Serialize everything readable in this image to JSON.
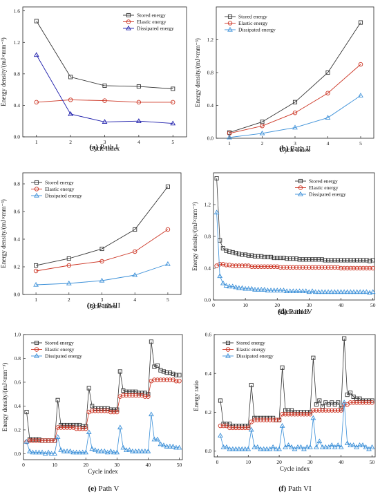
{
  "figure": {
    "colors": {
      "stored": "#333333",
      "elastic": "#cc3322",
      "dissipated_blue_line": "#1a1aaa",
      "dissipated": "#3a8fd8"
    },
    "legend_labels": [
      "Stored energy",
      "Elastic energy",
      "Dissipated energy"
    ]
  },
  "chart_data": [
    {
      "id": "a",
      "type": "line",
      "caption_letter": "(a)",
      "caption_text": " Path I",
      "xlabel": "Cycle index",
      "ylabel": "Energy density/(mJ×mm⁻³)",
      "xlim": [
        0.6,
        5.4
      ],
      "ylim": [
        0,
        1.65
      ],
      "xticks": [
        "1",
        "2",
        "3",
        "4",
        "5"
      ],
      "yticks": [
        "0.0",
        "0.4",
        "0.8",
        "1.2",
        "1.6"
      ],
      "legend_position": "top-right",
      "x": [
        1,
        2,
        3,
        4,
        5
      ],
      "series": [
        {
          "name": "Stored energy",
          "values": [
            1.47,
            0.76,
            0.65,
            0.64,
            0.61
          ]
        },
        {
          "name": "Elastic energy",
          "values": [
            0.44,
            0.47,
            0.46,
            0.44,
            0.44
          ]
        },
        {
          "name": "Dissipated energy",
          "values": [
            1.04,
            0.29,
            0.19,
            0.2,
            0.17
          ]
        }
      ]
    },
    {
      "id": "b",
      "type": "line",
      "caption_letter": "(b)",
      "caption_text": " Path II",
      "xlabel": "Cycle index",
      "ylabel": "Energy density/(mJ×mm⁻³)",
      "xlim": [
        0.6,
        5.4
      ],
      "ylim": [
        0,
        1.6
      ],
      "xticks": [
        "1",
        "2",
        "3",
        "4",
        "5"
      ],
      "yticks": [
        "0.0",
        "0.4",
        "0.8",
        "1.2"
      ],
      "legend_position": "top-left",
      "x": [
        1,
        2,
        3,
        4,
        5
      ],
      "series": [
        {
          "name": "Stored energy",
          "values": [
            0.07,
            0.2,
            0.44,
            0.8,
            1.41
          ]
        },
        {
          "name": "Elastic energy",
          "values": [
            0.06,
            0.15,
            0.31,
            0.55,
            0.9
          ]
        },
        {
          "name": "Dissipated energy",
          "values": [
            0.01,
            0.06,
            0.13,
            0.25,
            0.52
          ]
        }
      ]
    },
    {
      "id": "c",
      "type": "line",
      "caption_letter": "(c)",
      "caption_text": " Path III",
      "xlabel": "Cycle index",
      "ylabel": "Energy density/(mJ×mm⁻³)",
      "xlim": [
        0.6,
        5.4
      ],
      "ylim": [
        0,
        0.88
      ],
      "xticks": [
        "1",
        "2",
        "3",
        "4",
        "5"
      ],
      "yticks": [
        "0.0",
        "0.2",
        "0.4",
        "0.6",
        "0.8"
      ],
      "legend_position": "top-left",
      "x": [
        1,
        2,
        3,
        4,
        5
      ],
      "series": [
        {
          "name": "Stored energy",
          "values": [
            0.21,
            0.26,
            0.33,
            0.47,
            0.78
          ]
        },
        {
          "name": "Elastic energy",
          "values": [
            0.17,
            0.21,
            0.24,
            0.31,
            0.47
          ]
        },
        {
          "name": "Dissipated energy",
          "values": [
            0.07,
            0.08,
            0.1,
            0.14,
            0.22
          ]
        }
      ]
    },
    {
      "id": "d",
      "type": "line",
      "caption_letter": "(d)",
      "caption_text": " Path IV",
      "xlabel": "Cycle index",
      "ylabel": "Energy density/(mJ×mm⁻³)",
      "xlim": [
        0,
        50.5
      ],
      "ylim": [
        0,
        1.6
      ],
      "xticks": [
        "0",
        "10",
        "20",
        "30",
        "40",
        "50"
      ],
      "yticks": [
        "0.0",
        "0.4",
        "0.8",
        "1.2"
      ],
      "legend_position": "top-right",
      "x": [
        1,
        2,
        3,
        4,
        5,
        6,
        7,
        8,
        9,
        10,
        11,
        12,
        13,
        14,
        15,
        16,
        17,
        18,
        19,
        20,
        21,
        22,
        23,
        24,
        25,
        26,
        27,
        28,
        29,
        30,
        31,
        32,
        33,
        34,
        35,
        36,
        37,
        38,
        39,
        40,
        41,
        42,
        43,
        44,
        45,
        46,
        47,
        48,
        49,
        50
      ],
      "series": [
        {
          "name": "Stored energy",
          "values": [
            1.53,
            0.75,
            0.65,
            0.62,
            0.61,
            0.6,
            0.59,
            0.58,
            0.57,
            0.57,
            0.56,
            0.56,
            0.55,
            0.55,
            0.55,
            0.54,
            0.54,
            0.54,
            0.53,
            0.53,
            0.53,
            0.53,
            0.52,
            0.52,
            0.52,
            0.52,
            0.51,
            0.51,
            0.51,
            0.51,
            0.51,
            0.51,
            0.51,
            0.51,
            0.5,
            0.5,
            0.5,
            0.5,
            0.5,
            0.5,
            0.5,
            0.5,
            0.5,
            0.5,
            0.5,
            0.5,
            0.5,
            0.5,
            0.49,
            0.5
          ]
        },
        {
          "name": "Elastic energy",
          "values": [
            0.43,
            0.45,
            0.45,
            0.44,
            0.44,
            0.43,
            0.43,
            0.43,
            0.43,
            0.43,
            0.43,
            0.42,
            0.42,
            0.42,
            0.42,
            0.42,
            0.42,
            0.42,
            0.42,
            0.42,
            0.41,
            0.41,
            0.41,
            0.41,
            0.41,
            0.41,
            0.41,
            0.41,
            0.41,
            0.41,
            0.41,
            0.41,
            0.41,
            0.41,
            0.41,
            0.41,
            0.41,
            0.41,
            0.41,
            0.4,
            0.4,
            0.4,
            0.4,
            0.4,
            0.4,
            0.4,
            0.4,
            0.4,
            0.4,
            0.4
          ]
        },
        {
          "name": "Dissipated energy",
          "values": [
            1.1,
            0.3,
            0.21,
            0.18,
            0.17,
            0.17,
            0.16,
            0.15,
            0.15,
            0.14,
            0.14,
            0.14,
            0.13,
            0.13,
            0.13,
            0.13,
            0.12,
            0.12,
            0.12,
            0.12,
            0.12,
            0.12,
            0.11,
            0.11,
            0.11,
            0.11,
            0.11,
            0.11,
            0.11,
            0.1,
            0.11,
            0.1,
            0.1,
            0.1,
            0.1,
            0.1,
            0.1,
            0.1,
            0.1,
            0.1,
            0.1,
            0.1,
            0.1,
            0.1,
            0.1,
            0.1,
            0.1,
            0.1,
            0.09,
            0.1
          ]
        }
      ]
    },
    {
      "id": "e",
      "type": "line",
      "caption_letter": "(e)",
      "caption_text": " Path V",
      "xlabel": "Cycle index",
      "ylabel": "Energy density/(mJ×mm⁻³)",
      "xlim": [
        0,
        51
      ],
      "ylim": [
        -0.05,
        1.0
      ],
      "xticks": [
        "0",
        "10",
        "20",
        "30",
        "40",
        "50"
      ],
      "yticks": [
        "0.0",
        "0.2",
        "0.4",
        "0.6",
        "0.8",
        "1.0"
      ],
      "legend_position": "top-left",
      "x": [
        1,
        2,
        3,
        4,
        5,
        6,
        7,
        8,
        9,
        10,
        11,
        12,
        13,
        14,
        15,
        16,
        17,
        18,
        19,
        20,
        21,
        22,
        23,
        24,
        25,
        26,
        27,
        28,
        29,
        30,
        31,
        32,
        33,
        34,
        35,
        36,
        37,
        38,
        39,
        40,
        41,
        42,
        43,
        44,
        45,
        46,
        47,
        48,
        49,
        50
      ],
      "series": [
        {
          "name": "Stored energy",
          "values": [
            0.35,
            0.12,
            0.12,
            0.12,
            0.12,
            0.11,
            0.11,
            0.11,
            0.11,
            0.11,
            0.45,
            0.24,
            0.24,
            0.24,
            0.24,
            0.24,
            0.24,
            0.24,
            0.23,
            0.23,
            0.55,
            0.4,
            0.38,
            0.38,
            0.38,
            0.38,
            0.38,
            0.37,
            0.37,
            0.37,
            0.69,
            0.53,
            0.52,
            0.52,
            0.52,
            0.52,
            0.51,
            0.51,
            0.51,
            0.5,
            0.94,
            0.73,
            0.74,
            0.7,
            0.69,
            0.68,
            0.68,
            0.67,
            0.66,
            0.66
          ]
        },
        {
          "name": "Elastic energy",
          "values": [
            0.1,
            0.11,
            0.11,
            0.11,
            0.11,
            0.11,
            0.11,
            0.11,
            0.11,
            0.11,
            0.22,
            0.22,
            0.22,
            0.22,
            0.22,
            0.22,
            0.21,
            0.21,
            0.21,
            0.21,
            0.35,
            0.36,
            0.36,
            0.36,
            0.36,
            0.36,
            0.36,
            0.35,
            0.35,
            0.35,
            0.48,
            0.49,
            0.49,
            0.49,
            0.49,
            0.49,
            0.49,
            0.49,
            0.48,
            0.48,
            0.61,
            0.62,
            0.62,
            0.62,
            0.62,
            0.62,
            0.62,
            0.62,
            0.61,
            0.61
          ]
        },
        {
          "name": "Dissipated energy",
          "values": [
            0.1,
            0.02,
            0.01,
            0.01,
            0.01,
            0.01,
            0.0,
            0.01,
            0.0,
            0.0,
            0.14,
            0.03,
            0.02,
            0.02,
            0.02,
            0.01,
            0.01,
            0.01,
            0.01,
            0.01,
            0.18,
            0.04,
            0.03,
            0.02,
            0.02,
            0.02,
            0.01,
            0.02,
            0.01,
            0.01,
            0.22,
            0.05,
            0.03,
            0.03,
            0.02,
            0.02,
            0.02,
            0.02,
            0.02,
            0.02,
            0.33,
            0.12,
            0.12,
            0.08,
            0.07,
            0.06,
            0.06,
            0.06,
            0.05,
            0.05
          ]
        }
      ]
    },
    {
      "id": "f",
      "type": "line",
      "caption_letter": "(f)",
      "caption_text": " Path VI",
      "xlabel": "Cycle index",
      "ylabel": "Energy ratio",
      "xlim": [
        -1,
        51
      ],
      "ylim": [
        -0.03,
        0.6
      ],
      "xticks": [
        "0",
        "10",
        "20",
        "30",
        "40",
        "50"
      ],
      "yticks": [
        "0.0",
        "0.2",
        "0.4",
        "0.6"
      ],
      "legend_position": "top-left",
      "x": [
        1,
        2,
        3,
        4,
        5,
        6,
        7,
        8,
        9,
        10,
        11,
        12,
        13,
        14,
        15,
        16,
        17,
        18,
        19,
        20,
        21,
        22,
        23,
        24,
        25,
        26,
        27,
        28,
        29,
        30,
        31,
        32,
        33,
        34,
        35,
        36,
        37,
        38,
        39,
        40,
        41,
        42,
        43,
        44,
        45,
        46,
        47,
        48,
        49,
        50
      ],
      "series": [
        {
          "name": "Stored energy",
          "values": [
            0.26,
            0.14,
            0.14,
            0.14,
            0.13,
            0.13,
            0.13,
            0.13,
            0.13,
            0.13,
            0.34,
            0.17,
            0.17,
            0.17,
            0.17,
            0.17,
            0.17,
            0.17,
            0.16,
            0.16,
            0.43,
            0.21,
            0.21,
            0.21,
            0.2,
            0.2,
            0.2,
            0.2,
            0.2,
            0.2,
            0.48,
            0.24,
            0.26,
            0.23,
            0.25,
            0.24,
            0.25,
            0.24,
            0.25,
            0.22,
            0.58,
            0.29,
            0.3,
            0.28,
            0.27,
            0.27,
            0.26,
            0.26,
            0.26,
            0.26
          ]
        },
        {
          "name": "Elastic energy",
          "values": [
            0.13,
            0.13,
            0.13,
            0.12,
            0.12,
            0.12,
            0.12,
            0.12,
            0.12,
            0.12,
            0.15,
            0.16,
            0.16,
            0.16,
            0.16,
            0.16,
            0.16,
            0.16,
            0.16,
            0.16,
            0.19,
            0.19,
            0.19,
            0.19,
            0.19,
            0.19,
            0.19,
            0.19,
            0.19,
            0.19,
            0.21,
            0.21,
            0.21,
            0.21,
            0.21,
            0.21,
            0.21,
            0.21,
            0.21,
            0.21,
            0.24,
            0.24,
            0.25,
            0.25,
            0.25,
            0.25,
            0.25,
            0.25,
            0.25,
            0.25
          ]
        },
        {
          "name": "Dissipated energy",
          "values": [
            0.08,
            0.02,
            0.02,
            0.01,
            0.01,
            0.01,
            0.01,
            0.01,
            0.01,
            0.01,
            0.11,
            0.02,
            0.02,
            0.01,
            0.01,
            0.01,
            0.01,
            0.02,
            0.01,
            0.01,
            0.13,
            0.02,
            0.03,
            0.02,
            0.01,
            0.02,
            0.02,
            0.01,
            0.02,
            0.02,
            0.17,
            0.02,
            0.05,
            0.02,
            0.02,
            0.02,
            0.03,
            0.02,
            0.03,
            0.02,
            0.25,
            0.04,
            0.03,
            0.03,
            0.02,
            0.03,
            0.03,
            0.02,
            0.01,
            0.02
          ]
        }
      ]
    }
  ]
}
